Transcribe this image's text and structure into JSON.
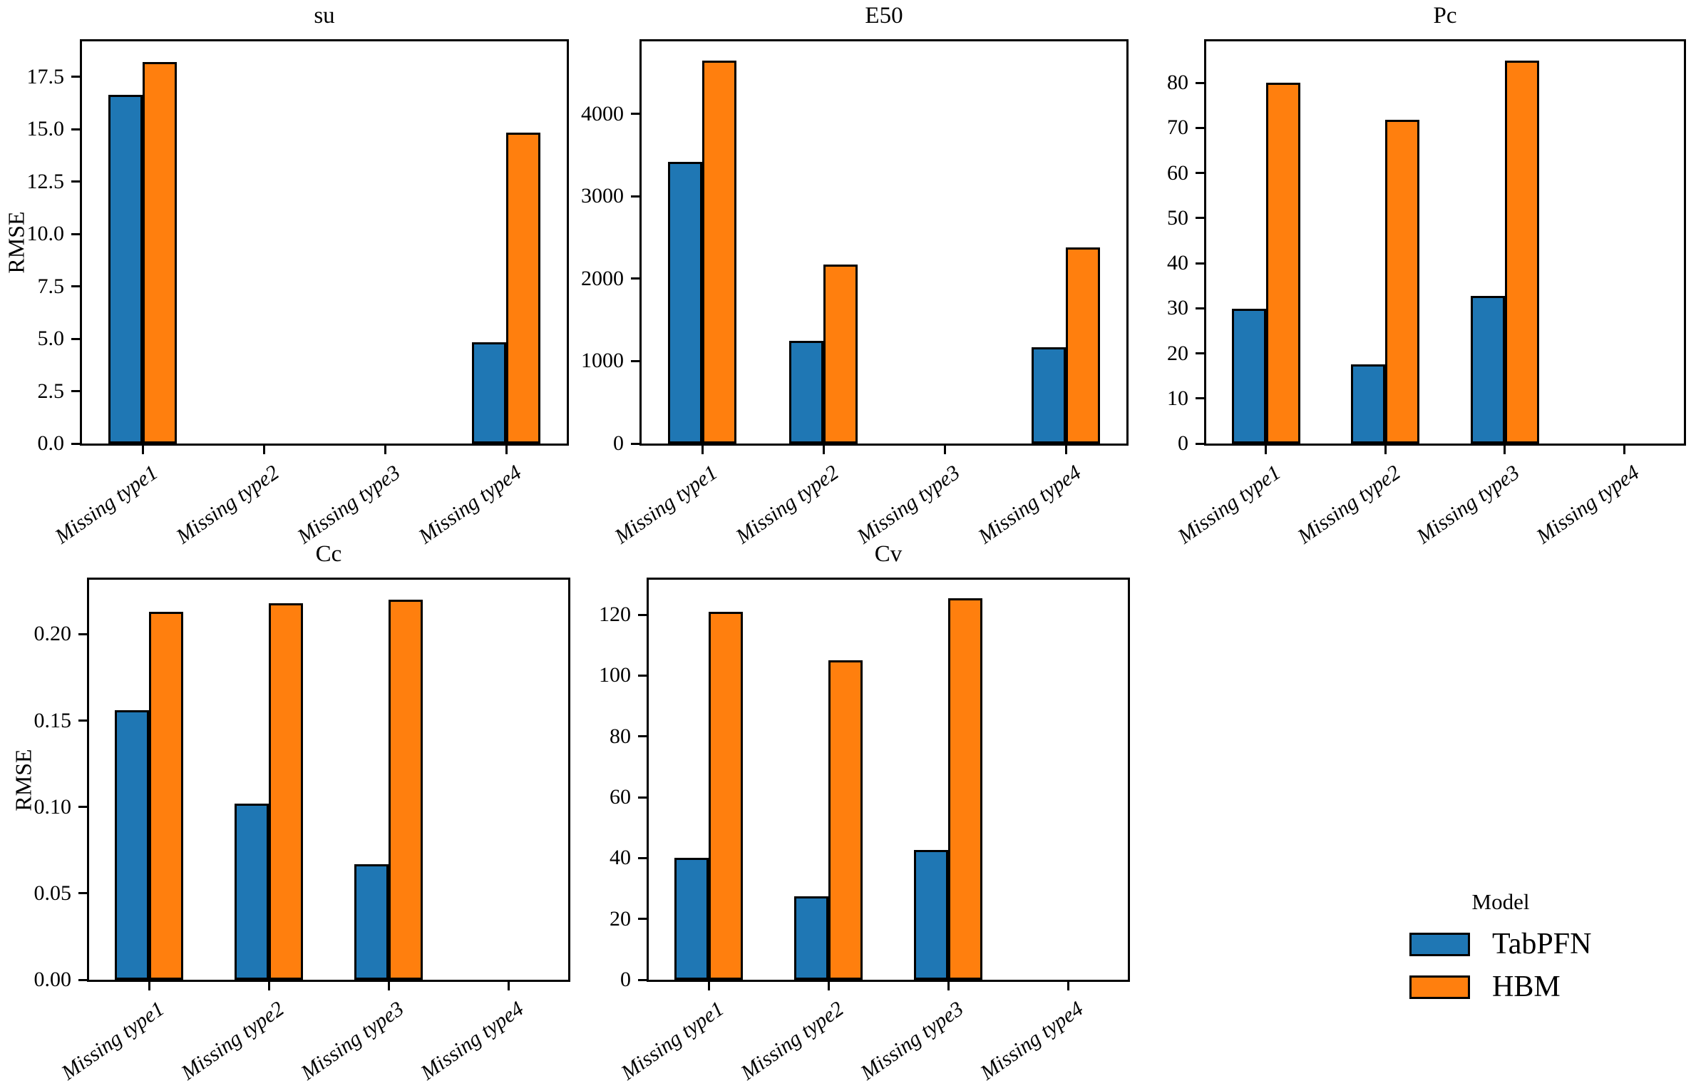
{
  "figure": {
    "background": "#ffffff",
    "text_color": "#000000",
    "bar_edge_color": "#000000"
  },
  "legend": {
    "title": "Model",
    "position": "lower right",
    "items": [
      {
        "label": "TabPFN",
        "color": "#1f77b4"
      },
      {
        "label": "HBM",
        "color": "#ff7f0e"
      }
    ]
  },
  "chart_data": [
    {
      "id": "su",
      "type": "bar",
      "title": "su",
      "ylabel": "RMSE",
      "xlabel": "",
      "grid": false,
      "categories": [
        "Missing type1",
        "Missing type2",
        "Missing type3",
        "Missing type4"
      ],
      "series": [
        {
          "name": "TabPFN",
          "color": "#1f77b4",
          "values": [
            16.65,
            0,
            0,
            4.85
          ]
        },
        {
          "name": "HBM",
          "color": "#ff7f0e",
          "values": [
            18.2,
            0,
            0,
            14.85
          ]
        }
      ],
      "ylim": [
        0,
        19.2
      ],
      "ytick_values": [
        0,
        2.5,
        5,
        7.5,
        10,
        12.5,
        15,
        17.5
      ],
      "ytick_labels": [
        "0.0",
        "2.5",
        "5.0",
        "7.5",
        "10.0",
        "12.5",
        "15.0",
        "17.5"
      ]
    },
    {
      "id": "E50",
      "type": "bar",
      "title": "E50",
      "ylabel": "",
      "xlabel": "",
      "grid": false,
      "categories": [
        "Missing type1",
        "Missing type2",
        "Missing type3",
        "Missing type4"
      ],
      "series": [
        {
          "name": "TabPFN",
          "color": "#1f77b4",
          "values": [
            3420,
            1245,
            0,
            1170
          ]
        },
        {
          "name": "HBM",
          "color": "#ff7f0e",
          "values": [
            4650,
            2170,
            0,
            2380
          ]
        }
      ],
      "ylim": [
        0,
        4880
      ],
      "ytick_values": [
        0,
        1000,
        2000,
        3000,
        4000
      ],
      "ytick_labels": [
        "0",
        "1000",
        "2000",
        "3000",
        "4000"
      ]
    },
    {
      "id": "Pc",
      "type": "bar",
      "title": "Pc",
      "ylabel": "",
      "xlabel": "",
      "grid": false,
      "categories": [
        "Missing type1",
        "Missing type2",
        "Missing type3",
        "Missing type4"
      ],
      "series": [
        {
          "name": "TabPFN",
          "color": "#1f77b4",
          "values": [
            29.9,
            17.5,
            32.7,
            0
          ]
        },
        {
          "name": "HBM",
          "color": "#ff7f0e",
          "values": [
            80,
            71.8,
            85,
            0
          ]
        }
      ],
      "ylim": [
        0,
        89.2
      ],
      "ytick_values": [
        0,
        10,
        20,
        30,
        40,
        50,
        60,
        70,
        80
      ],
      "ytick_labels": [
        "0",
        "10",
        "20",
        "30",
        "40",
        "50",
        "60",
        "70",
        "80"
      ]
    },
    {
      "id": "Cc",
      "type": "bar",
      "title": "Cc",
      "ylabel": "RMSE",
      "xlabel": "",
      "grid": false,
      "categories": [
        "Missing type1",
        "Missing type2",
        "Missing type3",
        "Missing type4"
      ],
      "series": [
        {
          "name": "TabPFN",
          "color": "#1f77b4",
          "values": [
            0.156,
            0.102,
            0.067,
            0
          ]
        },
        {
          "name": "HBM",
          "color": "#ff7f0e",
          "values": [
            0.213,
            0.218,
            0.22,
            0
          ]
        }
      ],
      "ylim": [
        0,
        0.2315
      ],
      "ytick_values": [
        0,
        0.05,
        0.1,
        0.15,
        0.2
      ],
      "ytick_labels": [
        "0.00",
        "0.05",
        "0.10",
        "0.15",
        "0.20"
      ]
    },
    {
      "id": "Cv",
      "type": "bar",
      "title": "Cv",
      "ylabel": "",
      "xlabel": "",
      "grid": false,
      "categories": [
        "Missing type1",
        "Missing type2",
        "Missing type3",
        "Missing type4"
      ],
      "series": [
        {
          "name": "TabPFN",
          "color": "#1f77b4",
          "values": [
            40,
            27.5,
            42.7,
            0
          ]
        },
        {
          "name": "HBM",
          "color": "#ff7f0e",
          "values": [
            121,
            105,
            125.5,
            0
          ]
        }
      ],
      "ylim": [
        0,
        131.5
      ],
      "ytick_values": [
        0,
        20,
        40,
        60,
        80,
        100,
        120
      ],
      "ytick_labels": [
        "0",
        "20",
        "40",
        "60",
        "80",
        "100",
        "120"
      ]
    }
  ]
}
